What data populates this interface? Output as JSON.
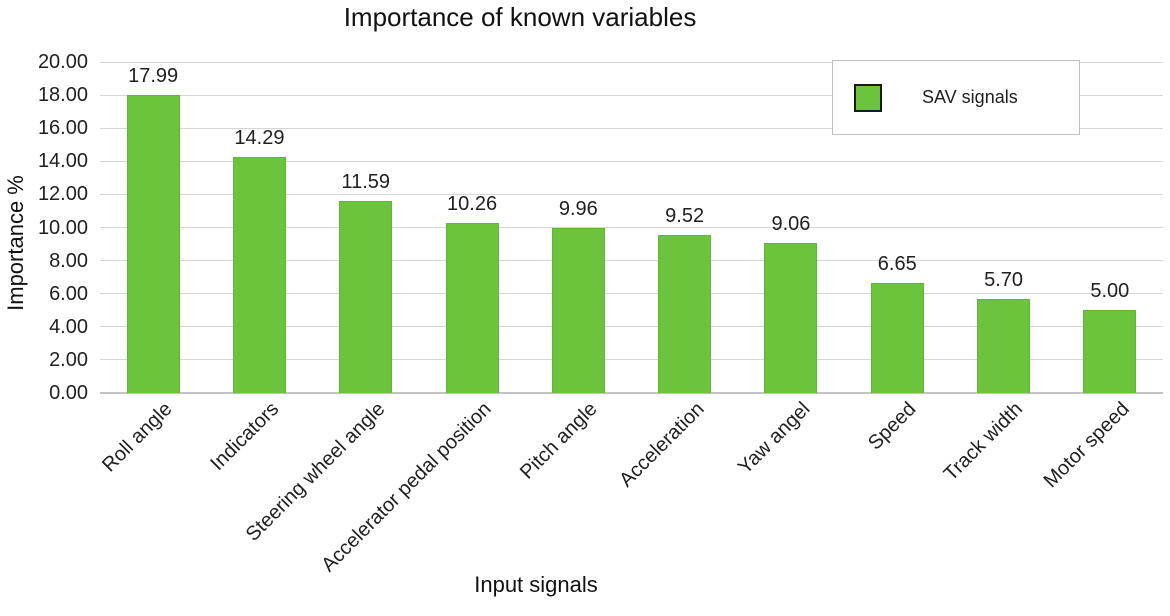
{
  "chart": {
    "title": "Importance of known variables",
    "ylabel": "Importance %",
    "xlabel": "Input signals",
    "legend_label": "SAV signals",
    "colors": {
      "bar": "#6cc43c",
      "bar_border": "#61b434",
      "gridline": "#d6d6d6",
      "text": "#1f1f1f",
      "legend_border": "#bfbfbf",
      "swatch_border": "#1a1a1a"
    }
  },
  "chart_data": {
    "type": "bar",
    "title": "Importance of known variables",
    "xlabel": "Input signals",
    "ylabel": "Importance %",
    "categories": [
      "Roll angle",
      "Indicators",
      "Steering wheel angle",
      "Accelerator pedal position",
      "Pitch angle",
      "Acceleration",
      "Yaw angel",
      "Speed",
      "Track width",
      "Motor speed"
    ],
    "values": [
      17.99,
      14.29,
      11.59,
      10.26,
      9.96,
      9.52,
      9.06,
      6.65,
      5.7,
      5.0
    ],
    "value_labels": [
      "17.99",
      "14.29",
      "11.59",
      "10.26",
      "9.96",
      "9.52",
      "9.06",
      "6.65",
      "5.70",
      "5.00"
    ],
    "ylim": [
      0,
      20
    ],
    "ytick_step": 2,
    "ytick_labels": [
      "0.00",
      "2.00",
      "4.00",
      "6.00",
      "8.00",
      "10.00",
      "12.00",
      "14.00",
      "16.00",
      "18.00",
      "20.00"
    ],
    "grid": true,
    "legend": [
      "SAV signals"
    ],
    "legend_position": "top-right",
    "series_color": "#6cc43c"
  }
}
